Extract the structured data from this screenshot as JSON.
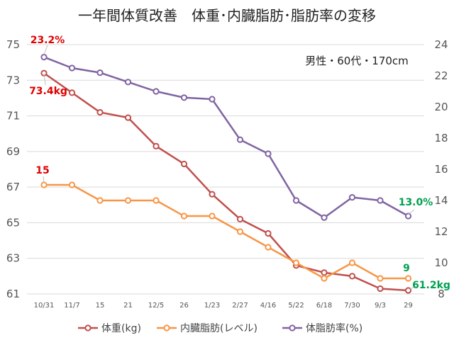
{
  "colors": {
    "weight": "#C0504D",
    "visceral": "#F79646",
    "bodyfat": "#8064A2",
    "anno_red": "#E00000",
    "anno_green": "#00A050",
    "grid": "#d9d9d9",
    "axis_text": "#595959"
  },
  "chart_data": {
    "type": "line",
    "title": "一年間体質改善　体重･内臓脂肪･脂肪率の変移",
    "annotation_text": "男性・60代・170cm",
    "categories": [
      "10/31",
      "11/7",
      "15",
      "21",
      "12/5",
      "26",
      "1/23",
      "2/27",
      "4/16",
      "5/22",
      "6/18",
      "7/30",
      "9/3",
      "29"
    ],
    "y_left": {
      "min": 61,
      "max": 75,
      "ticks": [
        "61",
        "63",
        "65",
        "67",
        "69",
        "71",
        "73",
        "75"
      ]
    },
    "y_right": {
      "min": 8,
      "max": 24,
      "ticks": [
        "8",
        "10",
        "12",
        "14",
        "16",
        "18",
        "20",
        "22",
        "24"
      ]
    },
    "grid": "horizontal",
    "legend_position": "bottom",
    "series": [
      {
        "key": "weight",
        "name": "体重(kg)",
        "axis": "left",
        "values": [
          73.4,
          72.3,
          71.2,
          70.9,
          69.3,
          68.3,
          66.6,
          65.2,
          64.4,
          62.6,
          62.2,
          62.0,
          61.3,
          61.2
        ]
      },
      {
        "key": "visceral",
        "name": "内臓脂肪(レベル)",
        "axis": "right",
        "values": [
          15,
          15,
          14,
          14,
          14,
          13,
          13,
          12,
          11,
          10,
          9,
          10,
          9,
          9
        ]
      },
      {
        "key": "bodyfat",
        "name": "体脂肪率(%)",
        "axis": "right",
        "values": [
          23.2,
          22.5,
          22.2,
          21.6,
          21.0,
          20.6,
          20.5,
          17.9,
          17.0,
          14.0,
          12.9,
          14.2,
          14.0,
          13.0
        ]
      }
    ],
    "annotations": [
      {
        "text": "23.2%",
        "color": "anno_red"
      },
      {
        "text": "73.4kg",
        "color": "anno_red"
      },
      {
        "text": "15",
        "color": "anno_red"
      },
      {
        "text": "13.0%",
        "color": "anno_green"
      },
      {
        "text": "9",
        "color": "anno_green"
      },
      {
        "text": "61.2kg",
        "color": "anno_green"
      }
    ]
  }
}
